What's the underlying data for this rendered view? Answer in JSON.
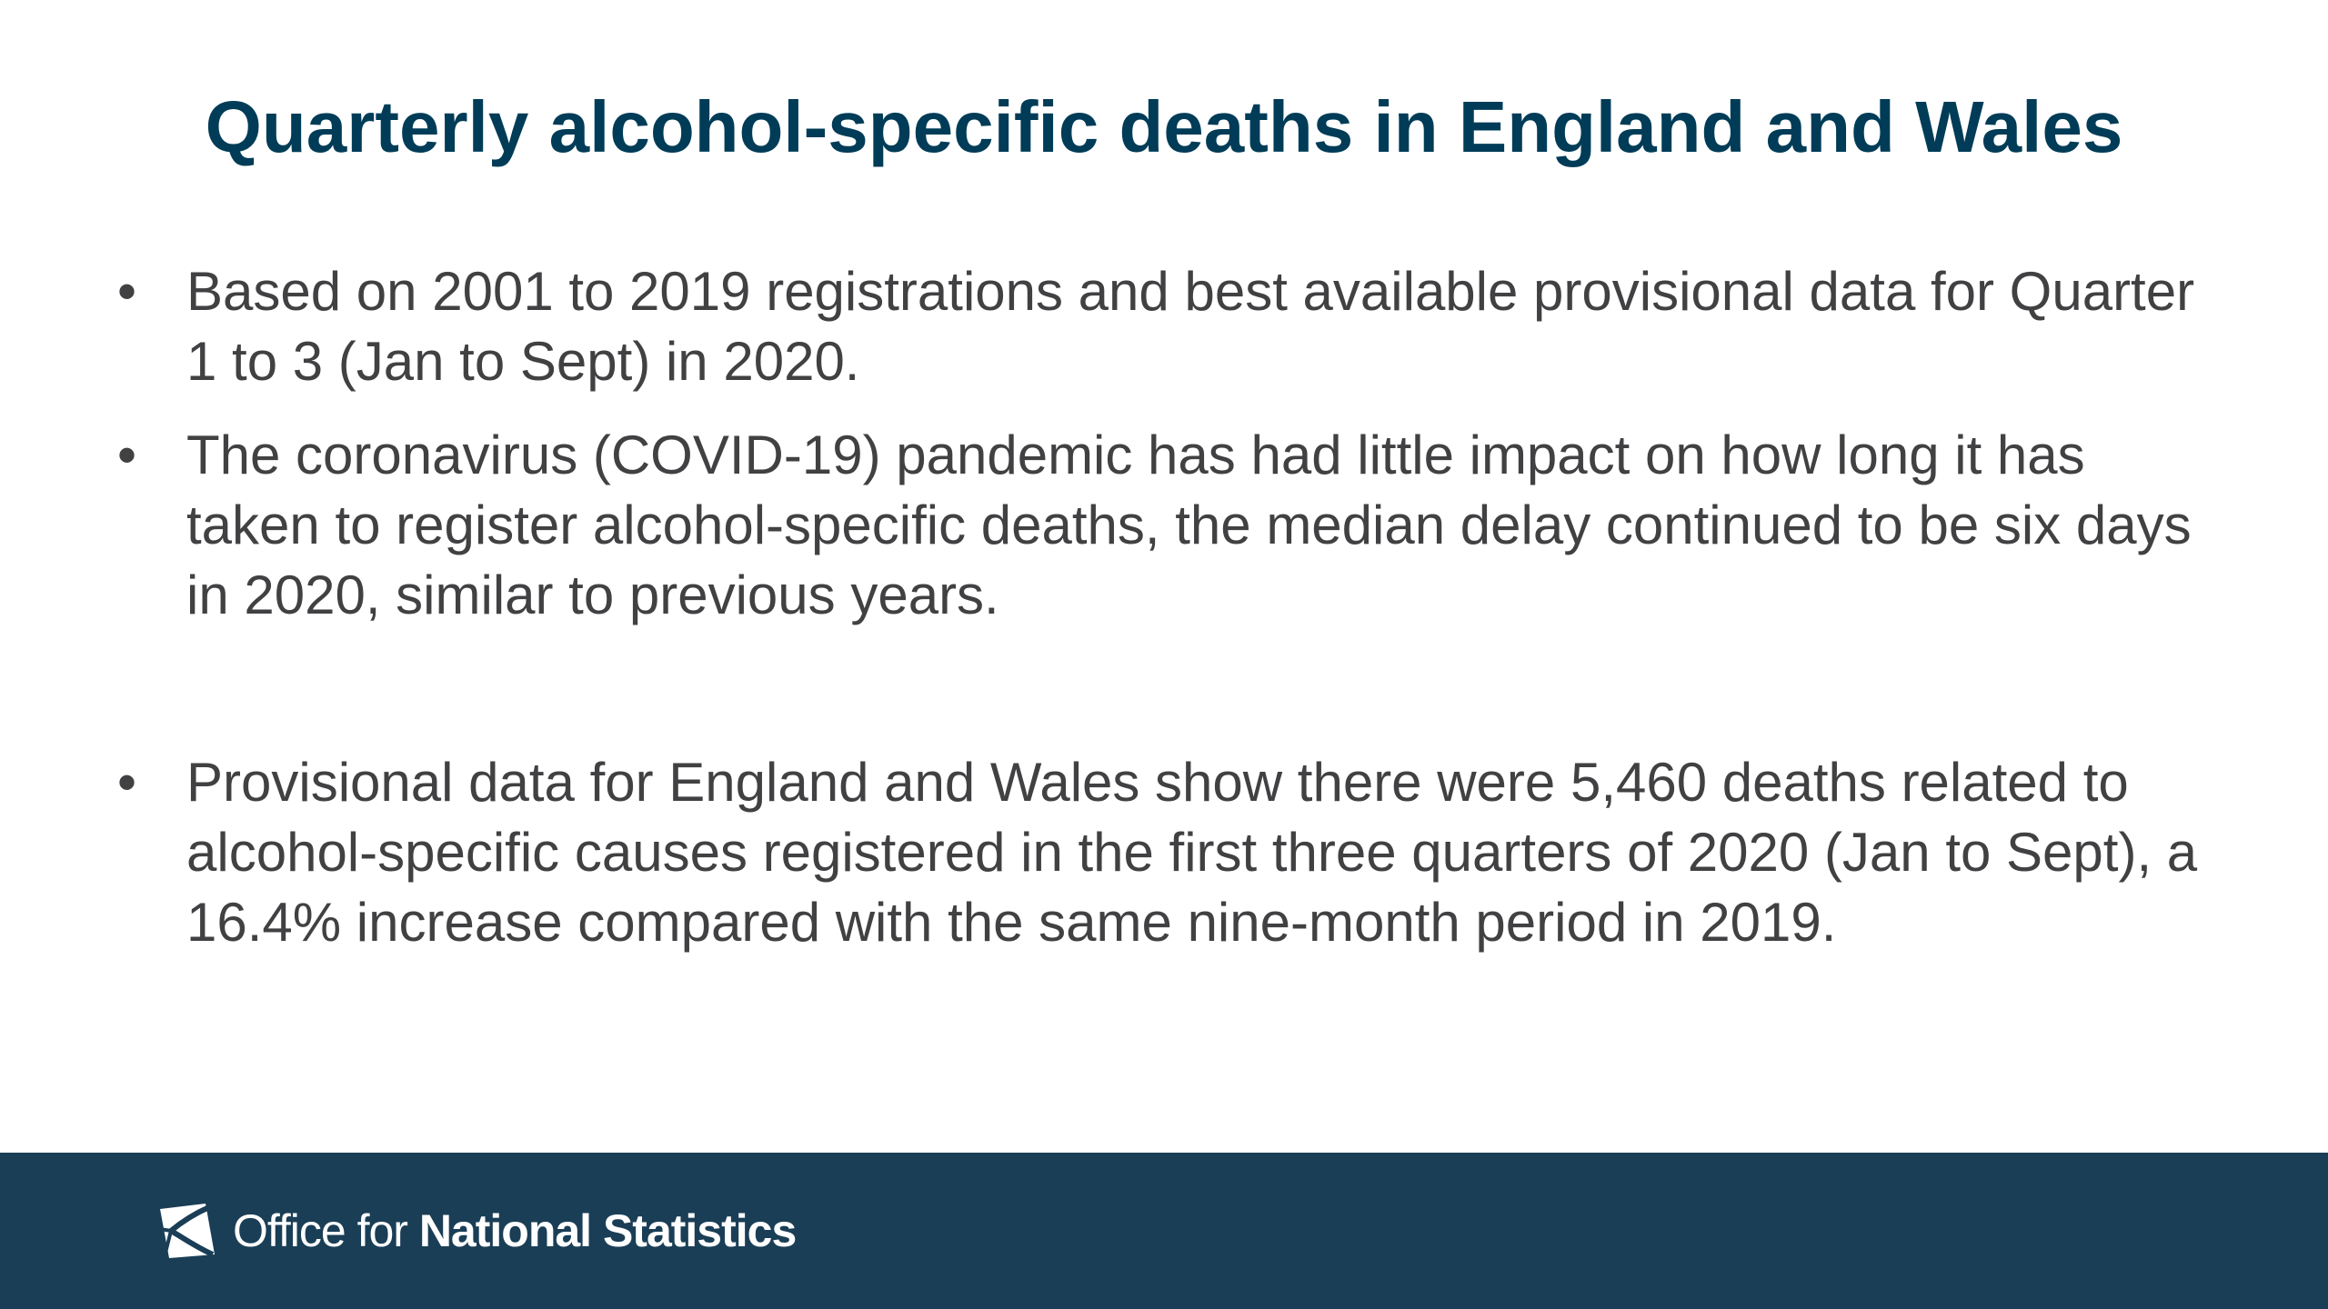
{
  "slide": {
    "title": "Quarterly alcohol-specific deaths in England and Wales",
    "bullets": [
      {
        "marker": "•",
        "text": "Based on 2001 to 2019 registrations and best available provisional data for Quarter 1 to 3 (Jan to Sept) in 2020."
      },
      {
        "marker": "•",
        "text": "The coronavirus (COVID-19) pandemic has had little impact on how long it has taken to register alcohol-specific deaths, the median delay continued to be six days in 2020, similar to previous years."
      },
      {
        "marker": "•",
        "text": "Provisional data for England and Wales show there were 5,460 deaths related to alcohol-specific causes registered in the first three quarters of 2020 (Jan to Sept), a 16.4% increase compared with the same nine-month period in 2019."
      }
    ]
  },
  "footer": {
    "logo_text_light": "Office for ",
    "logo_text_bold": "National Statistics",
    "logo_icon": "ons-logo-icon",
    "background_color": "#1a3e56"
  },
  "colors": {
    "title": "#003c57",
    "body_text": "#414042"
  }
}
